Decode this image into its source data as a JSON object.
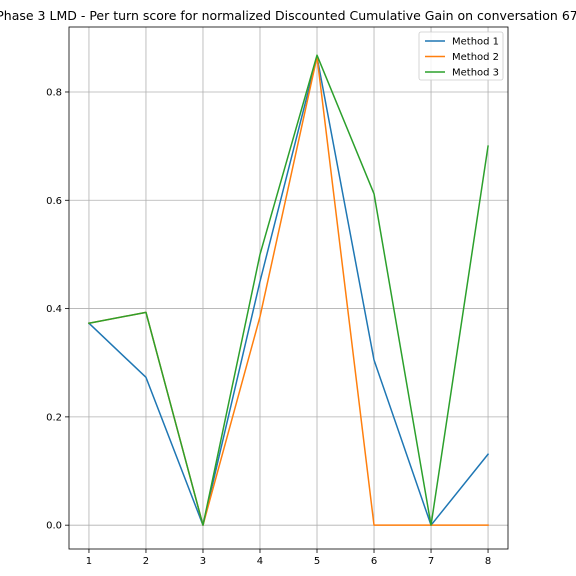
{
  "chart_data": {
    "type": "line",
    "title": "Phase 3 LMD - Per turn score for normalized Discounted Cumulative Gain on conversation 67",
    "xlabel": "",
    "ylabel": "",
    "x": [
      1,
      2,
      3,
      4,
      5,
      6,
      7,
      8
    ],
    "xticks": [
      1,
      2,
      3,
      4,
      5,
      6,
      7,
      8
    ],
    "yticks": [
      0.0,
      0.2,
      0.4,
      0.6,
      0.8
    ],
    "ytick_labels": [
      "0.0",
      "0.2",
      "0.4",
      "0.6",
      "0.8"
    ],
    "xlim": [
      0.65,
      8.35
    ],
    "ylim": [
      -0.044,
      0.92
    ],
    "grid": true,
    "legend_position": "top-right",
    "series": [
      {
        "name": "Method 1",
        "color": "#1f77b4",
        "values": [
          0.373,
          0.273,
          0.0,
          0.45,
          0.865,
          0.305,
          0.0,
          0.131
        ]
      },
      {
        "name": "Method 2",
        "color": "#ff7f0e",
        "values": [
          0.373,
          0.393,
          0.0,
          0.385,
          0.865,
          0.0,
          0.0,
          0.0
        ]
      },
      {
        "name": "Method 3",
        "color": "#2ca02c",
        "values": [
          0.373,
          0.393,
          0.0,
          0.5,
          0.868,
          0.612,
          0.0,
          0.7
        ]
      }
    ]
  }
}
